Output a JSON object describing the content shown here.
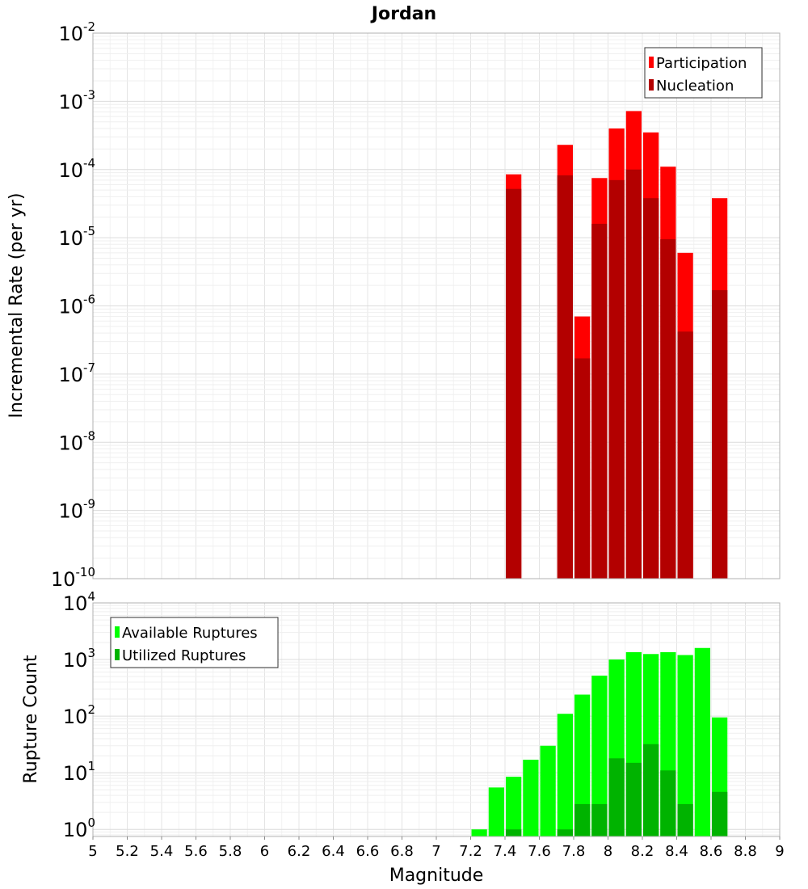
{
  "chart_data": [
    {
      "type": "bar",
      "title": "Jordan",
      "ylabel": "Incremental Rate (per yr)",
      "xlabel": "",
      "yscale": "log",
      "ylim": [
        1e-10,
        0.01
      ],
      "xlim": [
        5,
        9
      ],
      "grid": true,
      "legend_position": "top-right",
      "colors": {
        "Participation": "#ff0000",
        "Nucleation": "#b30000"
      },
      "y_ticks": [
        {
          "base": "10",
          "exp": "-10"
        },
        {
          "base": "10",
          "exp": "-9"
        },
        {
          "base": "10",
          "exp": "-8"
        },
        {
          "base": "10",
          "exp": "-7"
        },
        {
          "base": "10",
          "exp": "-6"
        },
        {
          "base": "10",
          "exp": "-5"
        },
        {
          "base": "10",
          "exp": "-4"
        },
        {
          "base": "10",
          "exp": "-3"
        },
        {
          "base": "10",
          "exp": "-2"
        }
      ],
      "x": [
        7.45,
        7.75,
        7.85,
        7.95,
        8.05,
        8.15,
        8.25,
        8.35,
        8.45,
        8.65
      ],
      "series": [
        {
          "name": "Participation",
          "values": [
            8.5e-05,
            0.00023,
            7e-07,
            7.5e-05,
            0.0004,
            0.00072,
            0.00035,
            0.00011,
            6e-06,
            3.8e-05
          ]
        },
        {
          "name": "Nucleation",
          "values": [
            5.2e-05,
            8.2e-05,
            1.7e-07,
            1.6e-05,
            7e-05,
            0.0001,
            3.8e-05,
            9.5e-06,
            4.2e-07,
            1.7e-06
          ]
        }
      ]
    },
    {
      "type": "bar",
      "title": "",
      "ylabel": "Rupture Count",
      "xlabel": "Magnitude",
      "yscale": "log",
      "ylim": [
        0.75,
        10000.0
      ],
      "xlim": [
        5,
        9
      ],
      "grid": true,
      "legend_position": "top-left",
      "colors": {
        "Available Ruptures": "#00ff00",
        "Utilized Ruptures": "#00b300"
      },
      "y_ticks": [
        {
          "base": "10",
          "exp": "0"
        },
        {
          "base": "10",
          "exp": "1"
        },
        {
          "base": "10",
          "exp": "2"
        },
        {
          "base": "10",
          "exp": "3"
        },
        {
          "base": "10",
          "exp": "4"
        }
      ],
      "x_ticks": [
        "5",
        "5.2",
        "5.4",
        "5.6",
        "5.8",
        "6",
        "6.2",
        "6.4",
        "6.6",
        "6.8",
        "7",
        "7.2",
        "7.4",
        "7.6",
        "7.8",
        "8",
        "8.2",
        "8.4",
        "8.6",
        "8.8",
        "9"
      ],
      "x": [
        7.25,
        7.35,
        7.45,
        7.55,
        7.65,
        7.75,
        7.85,
        7.95,
        8.05,
        8.15,
        8.25,
        8.35,
        8.45,
        8.55,
        8.65
      ],
      "series": [
        {
          "name": "Available Ruptures",
          "values": [
            1,
            5.5,
            8.5,
            17,
            30,
            110,
            240,
            520,
            1000,
            1350,
            1250,
            1350,
            1200,
            1600,
            95
          ]
        },
        {
          "name": "Utilized Ruptures",
          "values": [
            0,
            0,
            1,
            0,
            0,
            1,
            2.8,
            2.8,
            18,
            15,
            32,
            11,
            2.8,
            0,
            4.6
          ]
        }
      ]
    }
  ]
}
